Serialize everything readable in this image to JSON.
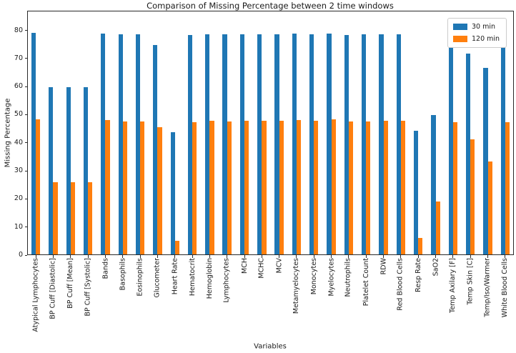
{
  "chart_data": {
    "type": "bar",
    "title": "Comparison of Missing Percentage between 2 time windows",
    "xlabel": "Variables",
    "ylabel": "Missing Percentage",
    "categories": [
      "Atypical Lymphocytes",
      "BP Cuff [Diastolic]",
      "BP Cuff [Mean]",
      "BP Cuff [Systolic]",
      "Bands",
      "Basophils",
      "Eosinophils",
      "Glucometer",
      "Heart Rate",
      "Hematocrit",
      "Hemoglobin",
      "Lymphocytes",
      "MCH",
      "MCHC",
      "MCV",
      "Metamyelocytes",
      "Monocytes",
      "Myelocytes",
      "Neutrophils",
      "Platelet Count",
      "RDW",
      "Red Blood Cells",
      "Resp Rate",
      "SaO2",
      "Temp Axilary [F]",
      "Temp Skin [C]",
      "Temp/Iso/Warmer",
      "White Blood Cells"
    ],
    "series": [
      {
        "name": "30 min",
        "color": "#1f77b4",
        "values": [
          79.0,
          59.9,
          59.9,
          59.9,
          78.9,
          78.5,
          78.5,
          74.8,
          43.8,
          78.4,
          78.7,
          78.5,
          78.5,
          78.5,
          78.6,
          78.8,
          78.5,
          78.9,
          78.4,
          78.5,
          78.6,
          78.5,
          44.3,
          49.9,
          83.2,
          71.8,
          66.6,
          77.6
        ]
      },
      {
        "name": "120 min",
        "color": "#ff7f0e",
        "values": [
          48.3,
          26.0,
          26.0,
          26.0,
          48.1,
          47.5,
          47.5,
          45.6,
          5.1,
          47.2,
          47.9,
          47.5,
          47.9,
          47.9,
          47.9,
          48.2,
          47.7,
          48.4,
          47.6,
          47.6,
          47.9,
          47.7,
          6.1,
          19.2,
          47.4,
          41.2,
          33.2,
          47.3
        ]
      }
    ],
    "ylim": [
      0,
      87
    ],
    "yticks": [
      0,
      10,
      20,
      30,
      40,
      50,
      60,
      70,
      80
    ],
    "grid": false,
    "legend_position": "upper right"
  }
}
